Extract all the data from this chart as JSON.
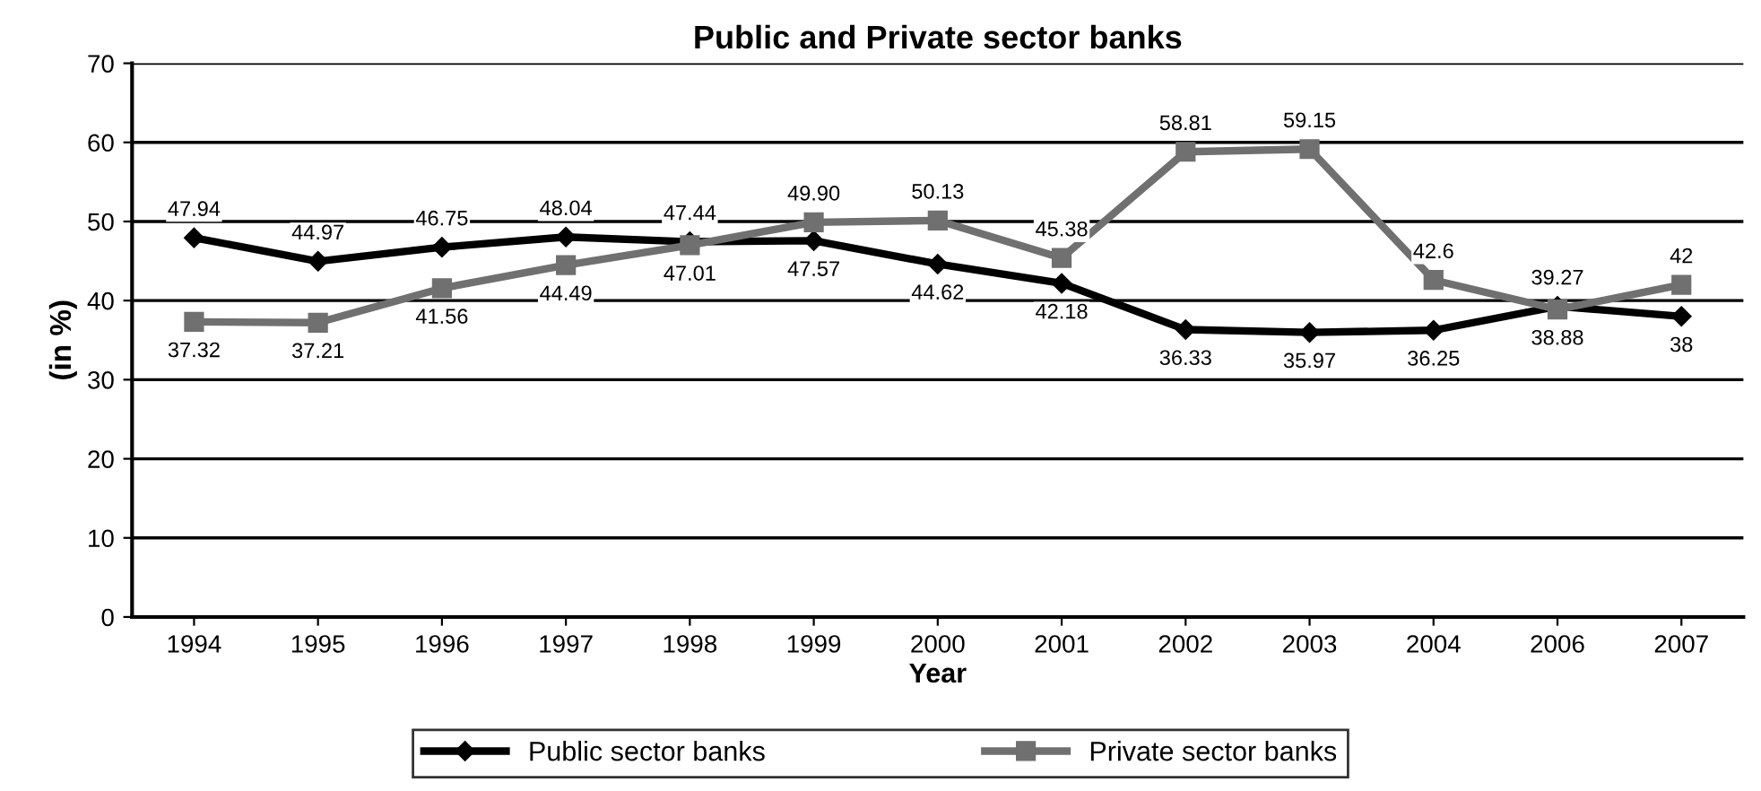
{
  "chart_data": {
    "type": "line",
    "title": "Public and Private sector banks",
    "xlabel": "Year",
    "ylabel": "(in %)",
    "categories": [
      "1994",
      "1995",
      "1996",
      "1997",
      "1998",
      "1999",
      "2000",
      "2001",
      "2002",
      "2003",
      "2004",
      "2006",
      "2007"
    ],
    "series": [
      {
        "name": "Public sector banks",
        "color": "#000000",
        "marker": "diamond",
        "values": [
          47.94,
          44.97,
          46.75,
          48.04,
          47.44,
          47.57,
          44.62,
          42.18,
          36.33,
          35.97,
          36.25,
          39.27,
          38
        ],
        "value_labels": [
          "47.94",
          "44.97",
          "46.75",
          "48.04",
          "47.44",
          "47.57",
          "44.62",
          "42.18",
          "36.33",
          "35.97",
          "36.25",
          "39.27",
          "38"
        ]
      },
      {
        "name": "Private sector banks",
        "color": "#707070",
        "marker": "square",
        "values": [
          37.32,
          37.21,
          41.56,
          44.49,
          47.01,
          49.9,
          50.13,
          45.38,
          58.81,
          59.15,
          42.6,
          38.88,
          42
        ],
        "value_labels": [
          "37.32",
          "37.21",
          "41.56",
          "44.49",
          "47.01",
          "49.90",
          "50.13",
          "45.38",
          "58.81",
          "59.15",
          "42.6",
          "38.88",
          "42"
        ]
      }
    ],
    "ylim": [
      0,
      70
    ],
    "yticks": [
      0,
      10,
      20,
      30,
      40,
      50,
      60,
      70
    ],
    "grid": "y",
    "legend": "bottom",
    "line_style": "solid"
  }
}
